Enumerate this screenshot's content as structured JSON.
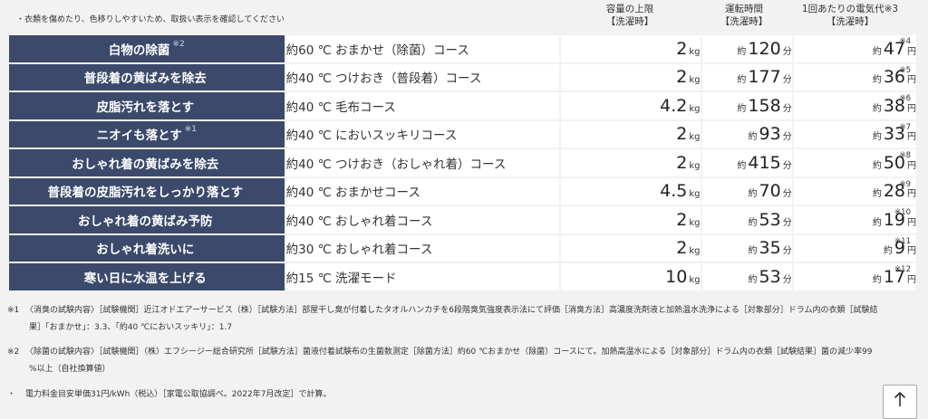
{
  "top_note": "・衣類を傷めたり、色移りしやすいため、取扱い表示を確認してください",
  "headers": {
    "capacity": [
      "容量の上限",
      "【洗濯時】"
    ],
    "time": [
      "運転時間",
      "【洗濯時】"
    ],
    "cost": [
      "1回あたりの電気代",
      "※3",
      "【洗濯時】"
    ]
  },
  "rows": [
    {
      "name": "白物の除菌",
      "name_ref": "※2",
      "course": "約60 ℃ おまかせ（除菌）コース",
      "cap": "2",
      "cap_unit": "kg",
      "time_pre": "約",
      "time": "120",
      "time_unit": "分",
      "cost_pre": "約",
      "cost": "47",
      "cost_unit": "円",
      "cost_ref": "※4"
    },
    {
      "name": "普段着の黄ばみを除去",
      "name_ref": "",
      "course": "約40 ℃ つけおき（普段着）コース",
      "cap": "2",
      "cap_unit": "kg",
      "time_pre": "約",
      "time": "177",
      "time_unit": "分",
      "cost_pre": "約",
      "cost": "36",
      "cost_unit": "円",
      "cost_ref": "※5"
    },
    {
      "name": "皮脂汚れを落とす",
      "name_ref": "",
      "course": "約40 ℃ 毛布コース",
      "cap": "4.2",
      "cap_unit": "kg",
      "time_pre": "約",
      "time": "158",
      "time_unit": "分",
      "cost_pre": "約",
      "cost": "38",
      "cost_unit": "円",
      "cost_ref": "※6"
    },
    {
      "name": "ニオイも落とす",
      "name_ref": "※1",
      "course": "約40 ℃ においスッキリコース",
      "cap": "2",
      "cap_unit": "kg",
      "time_pre": "約",
      "time": "93",
      "time_unit": "分",
      "cost_pre": "約",
      "cost": "33",
      "cost_unit": "円",
      "cost_ref": "※7"
    },
    {
      "name": "おしゃれ着の黄ばみを除去",
      "name_ref": "",
      "course": "約40 ℃ つけおき（おしゃれ着）コース",
      "cap": "2",
      "cap_unit": "kg",
      "time_pre": "約",
      "time": "415",
      "time_unit": "分",
      "cost_pre": "約",
      "cost": "50",
      "cost_unit": "円",
      "cost_ref": "※8"
    },
    {
      "name": "普段着の皮脂汚れをしっかり落とす",
      "name_ref": "",
      "course": "約40 ℃ おまかせコース",
      "cap": "4.5",
      "cap_unit": "kg",
      "time_pre": "約",
      "time": "70",
      "time_unit": "分",
      "cost_pre": "約",
      "cost": "28",
      "cost_unit": "円",
      "cost_ref": "※9"
    },
    {
      "name": "おしゃれ着の黄ばみ予防",
      "name_ref": "",
      "course": "約40 ℃ おしゃれ着コース",
      "cap": "2",
      "cap_unit": "kg",
      "time_pre": "約",
      "time": "53",
      "time_unit": "分",
      "cost_pre": "約",
      "cost": "19",
      "cost_unit": "円",
      "cost_ref": "※10"
    },
    {
      "name": "おしゃれ着洗いに",
      "name_ref": "",
      "course": "約30 ℃ おしゃれ着コース",
      "cap": "2",
      "cap_unit": "kg",
      "time_pre": "約",
      "time": "35",
      "time_unit": "分",
      "cost_pre": "約",
      "cost": "9",
      "cost_unit": "円",
      "cost_ref": "※11"
    },
    {
      "name": "寒い日に水温を上げる",
      "name_ref": "",
      "course": "約15 ℃ 洗濯モード",
      "cap": "10",
      "cap_unit": "kg",
      "time_pre": "約",
      "time": "53",
      "time_unit": "分",
      "cost_pre": "約",
      "cost": "17",
      "cost_unit": "円",
      "cost_ref": "※12"
    }
  ],
  "footnotes": [
    {
      "mark": "※1",
      "line1": "〈消臭の試験内容〉［試験機関］近江オドエアーサービス（株）［試験方法］部屋干し臭が付着したタオルハンカチを6段階臭気強度表示法にて評価［消臭方法］高濃度洗剤液と加熱温水洗浄による［対象部分］ドラム内の衣類［試験結",
      "line2": "果］「おまかせ」：3.3、「約40 ℃においスッキリ」：1.7"
    },
    {
      "mark": "※2",
      "line1": "〈除菌の試験内容〉［試験機関］（株）エフシージー総合研究所［試験方法］菌液付着試験布の生菌数測定［除菌方法］約60 ℃おまかせ（除菌）コースにて。加熱高温水による［対象部分］ドラム内の衣類［試験結果］菌の減少率99",
      "line2": "%以上（自社換算値）"
    },
    {
      "mark": "・",
      "line1": "電力料金目安単価31円/kWh（税込）［家電公取協調べ。2022年7月改定］で計算。",
      "line2": ""
    }
  ],
  "scroll_top_icon": "arrow-up-icon"
}
